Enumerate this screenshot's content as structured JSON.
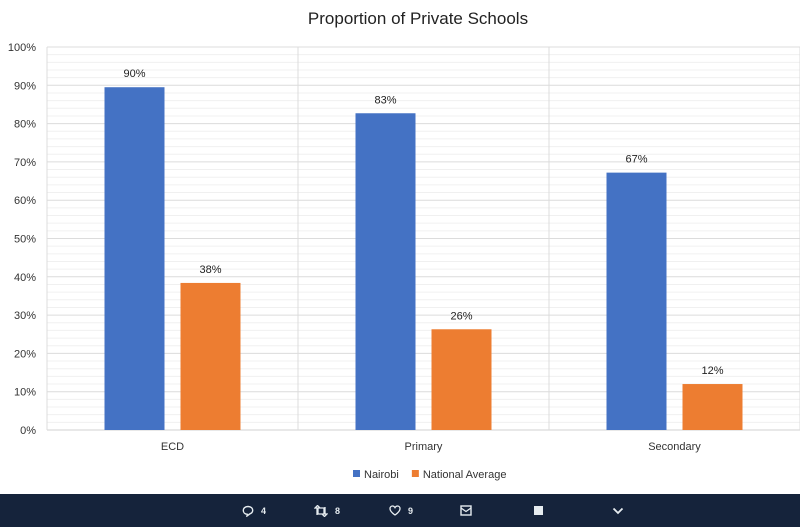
{
  "chart_data": {
    "type": "bar",
    "title": "Proportion of Private Schools",
    "categories": [
      "ECD",
      "Primary",
      "Secondary"
    ],
    "series": [
      {
        "name": "Nairobi",
        "values": [
          89.5,
          82.7,
          67.2
        ],
        "labels": [
          "90%",
          "83%",
          "67%"
        ],
        "color": "#4472c4"
      },
      {
        "name": "National Average",
        "values": [
          38.4,
          26.3,
          12.0
        ],
        "labels": [
          "38%",
          "26%",
          "12%"
        ],
        "color": "#ed7d31"
      }
    ],
    "ylim": [
      0,
      100
    ],
    "yticks": [
      "0%",
      "10%",
      "20%",
      "30%",
      "40%",
      "50%",
      "60%",
      "70%",
      "80%",
      "90%",
      "100%"
    ],
    "grid": true,
    "legend": "bottom"
  },
  "actions": {
    "reply": {
      "icon": "reply-icon",
      "count": "4"
    },
    "retweet": {
      "icon": "retweet-icon",
      "count": "8"
    },
    "like": {
      "icon": "heart-icon",
      "count": "9"
    },
    "dm": {
      "icon": "mail-icon"
    },
    "share": {
      "icon": "square-icon"
    },
    "more": {
      "icon": "chevron-down-icon"
    }
  }
}
